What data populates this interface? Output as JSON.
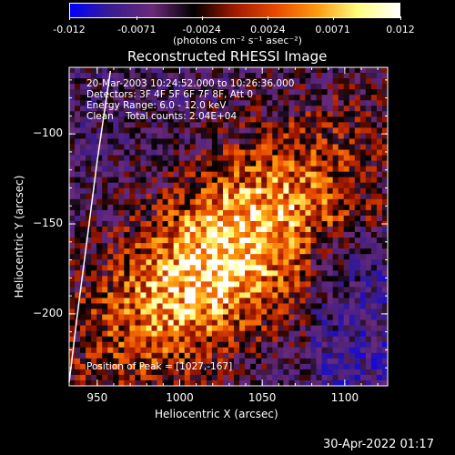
{
  "colorbar": {
    "tick_labels": [
      "-0.012",
      "-0.0071",
      "-0.0024",
      "0.0024",
      "0.0071",
      "0.012"
    ],
    "tick_values": [
      -0.012,
      -0.0071,
      -0.0024,
      0.0024,
      0.0071,
      0.012
    ],
    "range": [
      -0.012,
      0.012
    ],
    "colors": [
      "#0000ff",
      "#3b1d8f",
      "#6a2a7a",
      "#000000",
      "#a11a00",
      "#e84a00",
      "#ff9a10",
      "#ffff80",
      "#ffffff"
    ],
    "units_label": "(photons cm⁻² s⁻¹ asec⁻²)"
  },
  "chart_data": {
    "type": "heatmap",
    "title": "Reconstructed RHESSI Image",
    "xlabel": "Heliocentric X (arcsec)",
    "ylabel": "Heliocentric Y (arcsec)",
    "xlim": [
      933,
      1126
    ],
    "ylim": [
      -240,
      -63
    ],
    "x_ticks": [
      950,
      1000,
      1050,
      1100
    ],
    "y_ticks": [
      -100,
      -150,
      -200
    ],
    "x_tick_labels": [
      "950",
      "1000",
      "1050",
      "1100"
    ],
    "y_tick_labels": [
      "−100",
      "−150",
      "−200"
    ],
    "peak": [
      1027,
      -167
    ],
    "limb": [
      [
        958,
        -65
      ],
      [
        950,
        -115
      ],
      [
        943,
        -165
      ],
      [
        938,
        -200
      ],
      [
        933,
        -238
      ]
    ],
    "info_lines": [
      "20-Mar-2003 10:24:52.000 to 10:26:36.000",
      "Detectors: 3F 4F 5F 6F 7F 8F, Att 0",
      "Energy Range: 6.0 - 12.0 keV",
      "Clean    Total counts: 2.04E+04"
    ],
    "peak_label": "Position of Peak = [1027,-167]"
  },
  "footer": {
    "date": "30-Apr-2022 01:17"
  }
}
